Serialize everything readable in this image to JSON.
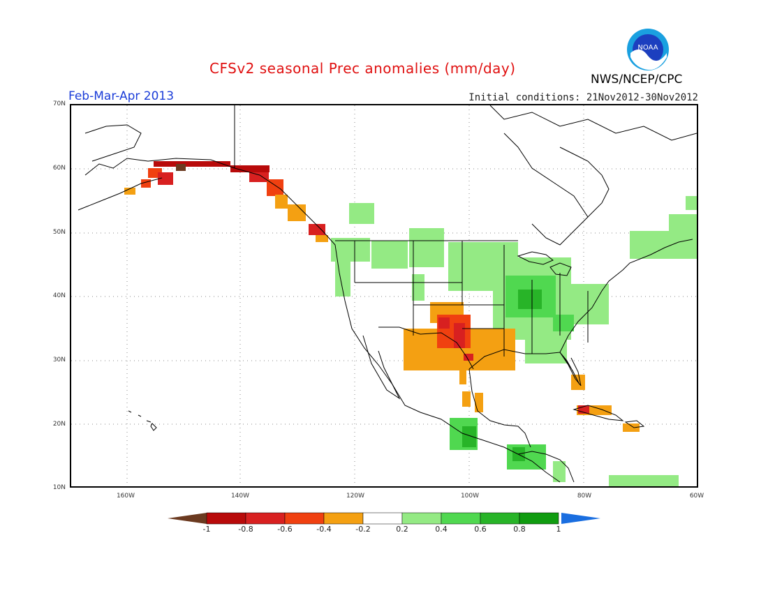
{
  "header": {
    "title": "CFSv2 seasonal Prec anomalies (mm/day)",
    "period": "Feb-Mar-Apr 2013",
    "init": "Initial conditions: 21Nov2012-30Nov2012",
    "org": "NWS/NCEP/CPC",
    "logo_text": "NOAA"
  },
  "axes": {
    "lat_labels": [
      "70N",
      "60N",
      "50N",
      "40N",
      "30N",
      "20N",
      "10N"
    ],
    "lon_labels": [
      "160W",
      "140W",
      "120W",
      "100W",
      "80W",
      "60W"
    ]
  },
  "colorbar": {
    "labels": [
      "-1",
      "-0.8",
      "-0.6",
      "-0.4",
      "-0.2",
      "0.2",
      "0.4",
      "0.6",
      "0.8",
      "1"
    ],
    "colors": [
      "#6b3a20",
      "#b80a0a",
      "#d82020",
      "#f04010",
      "#f4a012",
      "#ffffff",
      "#94ea84",
      "#50d850",
      "#28b428",
      "#109c10",
      "#1a6ee0"
    ]
  },
  "anomaly_regions": [
    {
      "name": "alaska-south",
      "value": -0.7
    },
    {
      "name": "gulf-of-alaska-coast",
      "value": -0.5
    },
    {
      "name": "pacific-northwest-coast",
      "value": -0.5
    },
    {
      "name": "southern-plains",
      "value": -0.4
    },
    {
      "name": "texas-new-mexico-core",
      "value": -0.7
    },
    {
      "name": "cuba",
      "value": -0.5
    },
    {
      "name": "ohio-valley",
      "value": 0.4
    },
    {
      "name": "southern-mexico",
      "value": 0.5
    }
  ]
}
